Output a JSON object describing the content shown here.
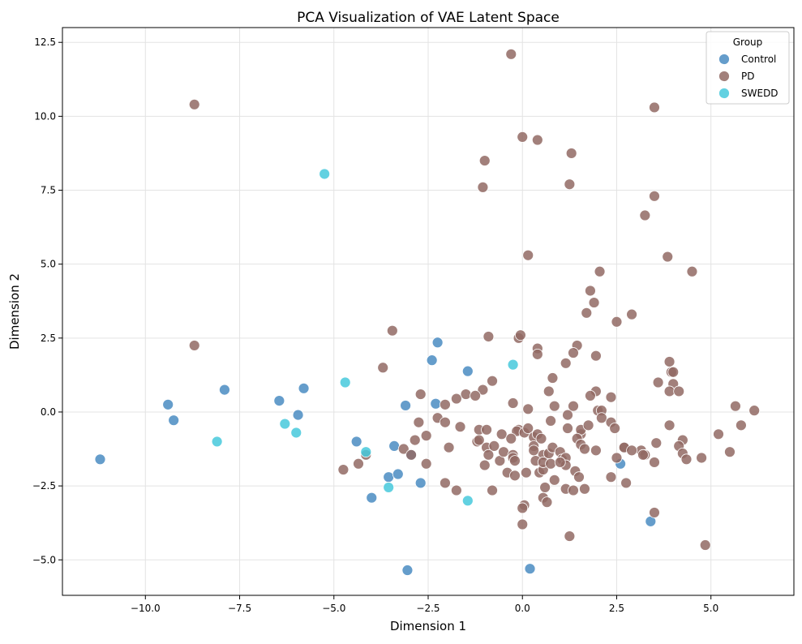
{
  "chart_data": {
    "type": "scatter",
    "title": "PCA Visualization of VAE Latent Space",
    "xlabel": "Dimension 1",
    "ylabel": "Dimension 2",
    "xlim": [
      -12.2,
      7.2
    ],
    "ylim": [
      -6.2,
      13.0
    ],
    "xticks": [
      -10.0,
      -7.5,
      -5.0,
      -2.5,
      0.0,
      2.5,
      5.0
    ],
    "xtick_labels": [
      "−10.0",
      "−7.5",
      "−5.0",
      "−2.5",
      "0.0",
      "2.5",
      "5.0"
    ],
    "yticks": [
      -5.0,
      -2.5,
      0.0,
      2.5,
      5.0,
      7.5,
      10.0,
      12.5
    ],
    "ytick_labels": [
      "−5.0",
      "−2.5",
      "0.0",
      "2.5",
      "5.0",
      "7.5",
      "10.0",
      "12.5"
    ],
    "grid": true,
    "legend": {
      "title": "Group",
      "placement": "top-right"
    },
    "series": [
      {
        "name": "Control",
        "color": "#4a8cc2",
        "points": [
          [
            -11.2,
            -1.6
          ],
          [
            -9.4,
            0.25
          ],
          [
            -9.25,
            -0.28
          ],
          [
            -7.9,
            0.75
          ],
          [
            -6.45,
            0.38
          ],
          [
            -5.8,
            0.8
          ],
          [
            -5.95,
            -0.1
          ],
          [
            -4.4,
            -1.0
          ],
          [
            -4.0,
            -2.9
          ],
          [
            -3.55,
            -2.2
          ],
          [
            -3.3,
            -2.1
          ],
          [
            -3.4,
            -1.15
          ],
          [
            -3.1,
            0.22
          ],
          [
            -2.95,
            -1.45
          ],
          [
            -2.7,
            -2.4
          ],
          [
            -2.4,
            1.75
          ],
          [
            -2.3,
            0.28
          ],
          [
            -2.25,
            2.35
          ],
          [
            -1.45,
            1.38
          ],
          [
            -3.05,
            -5.35
          ],
          [
            0.2,
            -5.3
          ],
          [
            2.6,
            -1.75
          ],
          [
            3.4,
            -3.7
          ]
        ]
      },
      {
        "name": "PD",
        "color": "#926a64",
        "points": [
          [
            -8.7,
            10.4
          ],
          [
            -0.3,
            12.1
          ],
          [
            3.5,
            10.3
          ],
          [
            0.0,
            9.3
          ],
          [
            0.4,
            9.2
          ],
          [
            1.3,
            8.75
          ],
          [
            -1.0,
            8.5
          ],
          [
            -1.05,
            7.6
          ],
          [
            1.25,
            7.7
          ],
          [
            3.5,
            7.3
          ],
          [
            3.25,
            6.65
          ],
          [
            0.15,
            5.3
          ],
          [
            3.85,
            5.25
          ],
          [
            4.5,
            4.75
          ],
          [
            2.05,
            4.75
          ],
          [
            1.8,
            4.1
          ],
          [
            1.9,
            3.7
          ],
          [
            1.7,
            3.35
          ],
          [
            2.9,
            3.3
          ],
          [
            2.5,
            3.05
          ],
          [
            -3.45,
            2.75
          ],
          [
            -0.9,
            2.55
          ],
          [
            -0.1,
            2.5
          ],
          [
            -0.05,
            2.6
          ],
          [
            1.45,
            2.25
          ],
          [
            0.4,
            2.15
          ],
          [
            0.4,
            1.95
          ],
          [
            1.35,
            2.0
          ],
          [
            1.95,
            1.9
          ],
          [
            1.15,
            1.65
          ],
          [
            -3.7,
            1.5
          ],
          [
            3.9,
            1.7
          ],
          [
            3.95,
            1.35
          ],
          [
            4.0,
            1.35
          ],
          [
            0.8,
            1.15
          ],
          [
            -0.8,
            1.05
          ],
          [
            3.6,
            1.0
          ],
          [
            4.0,
            0.95
          ],
          [
            3.9,
            0.7
          ],
          [
            4.15,
            0.7
          ],
          [
            1.95,
            0.7
          ],
          [
            0.7,
            0.7
          ],
          [
            -1.05,
            0.75
          ],
          [
            -1.5,
            0.6
          ],
          [
            -2.7,
            0.6
          ],
          [
            -1.75,
            0.45
          ],
          [
            -2.05,
            0.25
          ],
          [
            -1.25,
            0.55
          ],
          [
            -0.25,
            0.3
          ],
          [
            0.85,
            0.2
          ],
          [
            1.35,
            0.2
          ],
          [
            1.8,
            0.55
          ],
          [
            2.0,
            0.05
          ],
          [
            2.1,
            0.05
          ],
          [
            2.35,
            0.5
          ],
          [
            5.65,
            0.2
          ],
          [
            6.15,
            0.05
          ],
          [
            0.15,
            0.1
          ],
          [
            -0.1,
            -0.6
          ],
          [
            -0.15,
            -0.65
          ],
          [
            0.05,
            -0.7
          ],
          [
            0.15,
            -0.55
          ],
          [
            0.75,
            -0.3
          ],
          [
            1.2,
            -0.1
          ],
          [
            1.55,
            -0.75
          ],
          [
            1.55,
            -0.6
          ],
          [
            1.75,
            -0.45
          ],
          [
            2.1,
            -0.2
          ],
          [
            2.35,
            -0.35
          ],
          [
            2.45,
            -0.55
          ],
          [
            3.9,
            -0.45
          ],
          [
            5.2,
            -0.75
          ],
          [
            5.8,
            -0.45
          ],
          [
            -2.75,
            -0.35
          ],
          [
            -2.25,
            -0.2
          ],
          [
            -2.05,
            -0.35
          ],
          [
            -1.65,
            -0.5
          ],
          [
            -1.15,
            -0.6
          ],
          [
            -0.95,
            -0.6
          ],
          [
            -0.55,
            -0.75
          ],
          [
            -0.3,
            -0.9
          ],
          [
            0.3,
            -0.85
          ],
          [
            0.4,
            -0.75
          ],
          [
            0.5,
            -0.9
          ],
          [
            1.2,
            -0.55
          ],
          [
            1.45,
            -0.9
          ],
          [
            2.7,
            -1.2
          ],
          [
            3.15,
            -1.3
          ],
          [
            3.25,
            -1.45
          ],
          [
            3.55,
            -1.05
          ],
          [
            4.25,
            -0.95
          ],
          [
            4.15,
            -1.15
          ],
          [
            4.25,
            -1.4
          ],
          [
            4.35,
            -1.6
          ],
          [
            4.75,
            -1.55
          ],
          [
            5.5,
            -1.35
          ],
          [
            -2.85,
            -0.95
          ],
          [
            -2.55,
            -0.8
          ],
          [
            -1.95,
            -1.2
          ],
          [
            -1.2,
            -1.0
          ],
          [
            -1.15,
            -0.95
          ],
          [
            -0.95,
            -1.2
          ],
          [
            -0.75,
            -1.15
          ],
          [
            -0.9,
            -1.45
          ],
          [
            -0.6,
            -1.65
          ],
          [
            -0.5,
            -1.35
          ],
          [
            -0.25,
            -1.45
          ],
          [
            -0.25,
            -1.55
          ],
          [
            0.3,
            -1.15
          ],
          [
            0.3,
            -1.3
          ],
          [
            0.55,
            -1.45
          ],
          [
            0.7,
            -1.4
          ],
          [
            0.8,
            -1.2
          ],
          [
            1.0,
            -1.35
          ],
          [
            1.05,
            -1.6
          ],
          [
            1.15,
            -1.55
          ],
          [
            1.15,
            -1.8
          ],
          [
            1.55,
            -1.1
          ],
          [
            1.65,
            -1.25
          ],
          [
            1.95,
            -1.3
          ],
          [
            2.5,
            -1.55
          ],
          [
            2.7,
            -1.2
          ],
          [
            2.9,
            -1.3
          ],
          [
            3.2,
            -1.45
          ],
          [
            3.5,
            -1.7
          ],
          [
            -4.75,
            -1.95
          ],
          [
            -4.35,
            -1.75
          ],
          [
            -4.15,
            -1.45
          ],
          [
            -3.15,
            -1.25
          ],
          [
            -2.95,
            -1.45
          ],
          [
            -2.55,
            -1.75
          ],
          [
            -1.0,
            -1.8
          ],
          [
            -0.4,
            -2.05
          ],
          [
            -0.2,
            -1.65
          ],
          [
            -0.2,
            -2.15
          ],
          [
            0.1,
            -2.05
          ],
          [
            0.35,
            -1.65
          ],
          [
            0.45,
            -2.05
          ],
          [
            0.55,
            -1.95
          ],
          [
            0.55,
            -1.7
          ],
          [
            0.75,
            -1.75
          ],
          [
            0.85,
            -2.3
          ],
          [
            1.0,
            -1.7
          ],
          [
            1.4,
            -2.0
          ],
          [
            1.5,
            -2.2
          ],
          [
            2.35,
            -2.2
          ],
          [
            2.75,
            -2.4
          ],
          [
            -2.05,
            -2.4
          ],
          [
            -1.75,
            -2.65
          ],
          [
            -0.8,
            -2.65
          ],
          [
            0.55,
            -2.9
          ],
          [
            0.65,
            -3.05
          ],
          [
            0.6,
            -2.55
          ],
          [
            1.15,
            -2.6
          ],
          [
            1.35,
            -2.65
          ],
          [
            1.65,
            -2.6
          ],
          [
            0.05,
            -3.15
          ],
          [
            0.0,
            -3.25
          ],
          [
            0.0,
            -3.8
          ],
          [
            3.5,
            -3.4
          ],
          [
            1.25,
            -4.2
          ],
          [
            4.85,
            -4.5
          ],
          [
            -8.7,
            2.25
          ]
        ]
      },
      {
        "name": "SWEDD",
        "color": "#46c9dc",
        "points": [
          [
            -5.25,
            8.05
          ],
          [
            -8.1,
            -1.0
          ],
          [
            -6.3,
            -0.4
          ],
          [
            -6.0,
            -0.7
          ],
          [
            -4.7,
            1.0
          ],
          [
            -4.15,
            -1.35
          ],
          [
            -3.55,
            -2.55
          ],
          [
            -1.45,
            -3.0
          ],
          [
            -0.25,
            1.6
          ]
        ]
      }
    ]
  }
}
